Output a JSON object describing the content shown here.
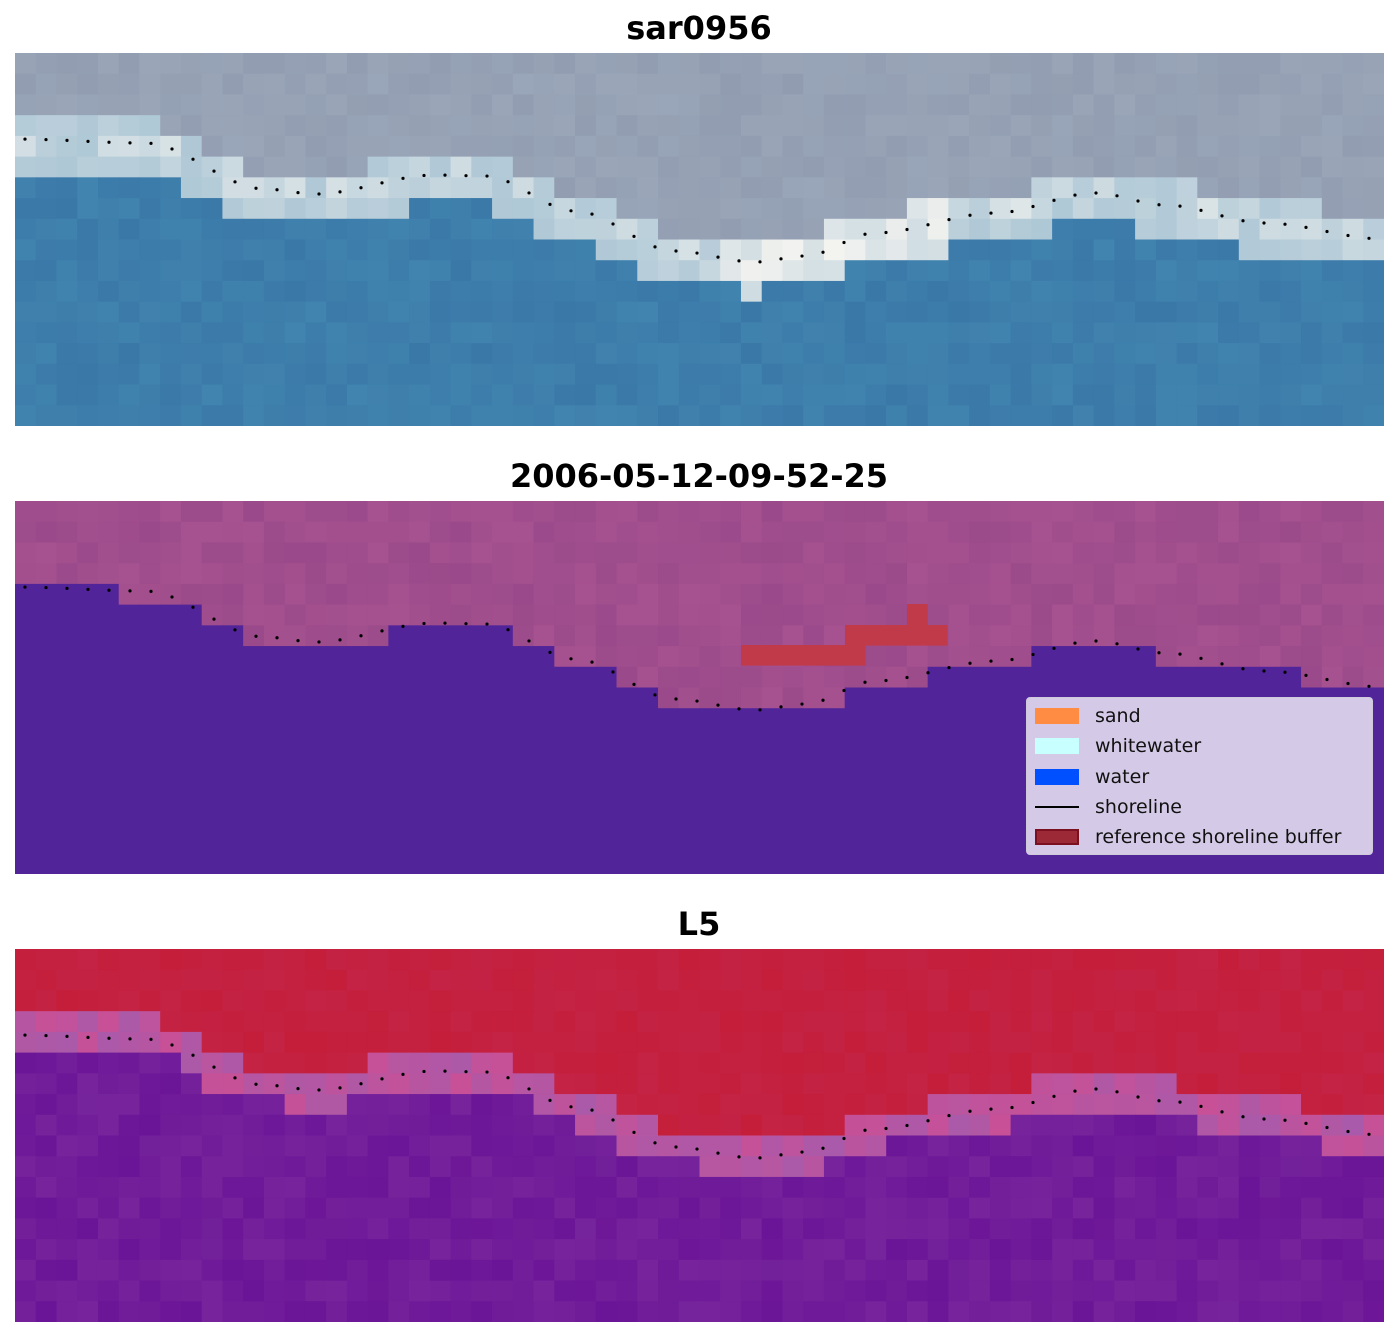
{
  "panels": [
    {
      "title": "sar0956"
    },
    {
      "title": "2006-05-12-09-52-25"
    },
    {
      "title": "L5"
    }
  ],
  "legend": {
    "items": [
      {
        "label": "sand",
        "color": "#ff8c42",
        "kind": "patch"
      },
      {
        "label": "whitewater",
        "color": "#c8ffff",
        "kind": "patch"
      },
      {
        "label": "water",
        "color": "#0050ff",
        "kind": "patch"
      },
      {
        "label": "shoreline",
        "color": "#000000",
        "kind": "line"
      },
      {
        "label": "reference shoreline buffer",
        "color": "#9c2a36",
        "kind": "patch"
      }
    ]
  },
  "colors": {
    "water_class_overlay": "#52249a",
    "land_overlay": "#9a4a8a",
    "buffer": "#c03a4a",
    "sar_sea": "#3a78a8",
    "sar_land": "#9aa6b8",
    "index_land": "#c41e3a",
    "index_water": "#6a1497"
  }
}
